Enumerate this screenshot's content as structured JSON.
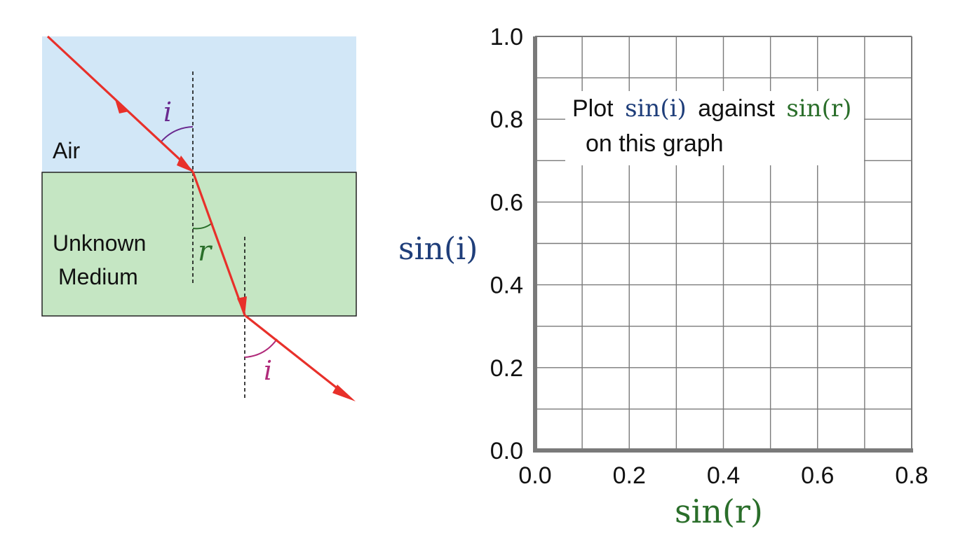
{
  "diagram": {
    "air_label": "Air",
    "medium_label_line1": "Unknown",
    "medium_label_line2": "Medium",
    "angle_i_top": "i",
    "angle_r": "r",
    "angle_i_bottom": "i",
    "colors": {
      "air": "#d2e7f7",
      "medium": "#c5e6c3",
      "ray": "#e8302a",
      "angle_i": "#6a2a8f",
      "angle_r": "#2a6e2a"
    }
  },
  "graph": {
    "ylabel": "sin(i)",
    "xlabel": "sin(r)",
    "yticks": [
      "1.0",
      "0.8",
      "0.6",
      "0.4",
      "0.2",
      "0.0"
    ],
    "xticks": [
      "0.0",
      "0.2",
      "0.4",
      "0.6",
      "0.8"
    ],
    "instruction_plot": "Plot",
    "instruction_sin_i": "sin(i)",
    "instruction_against": "against",
    "instruction_sin_r": "sin(r)",
    "instruction_line2": "on this graph",
    "colors": {
      "sin_i": "#1f3e7a",
      "sin_r": "#2a6e2a",
      "grid": "#7a7a7a"
    }
  },
  "chart_data": {
    "type": "scatter",
    "title": "",
    "xlabel": "sin(r)",
    "ylabel": "sin(i)",
    "xlim": [
      0,
      0.8
    ],
    "ylim": [
      0,
      1.0
    ],
    "grid": true,
    "series": []
  }
}
